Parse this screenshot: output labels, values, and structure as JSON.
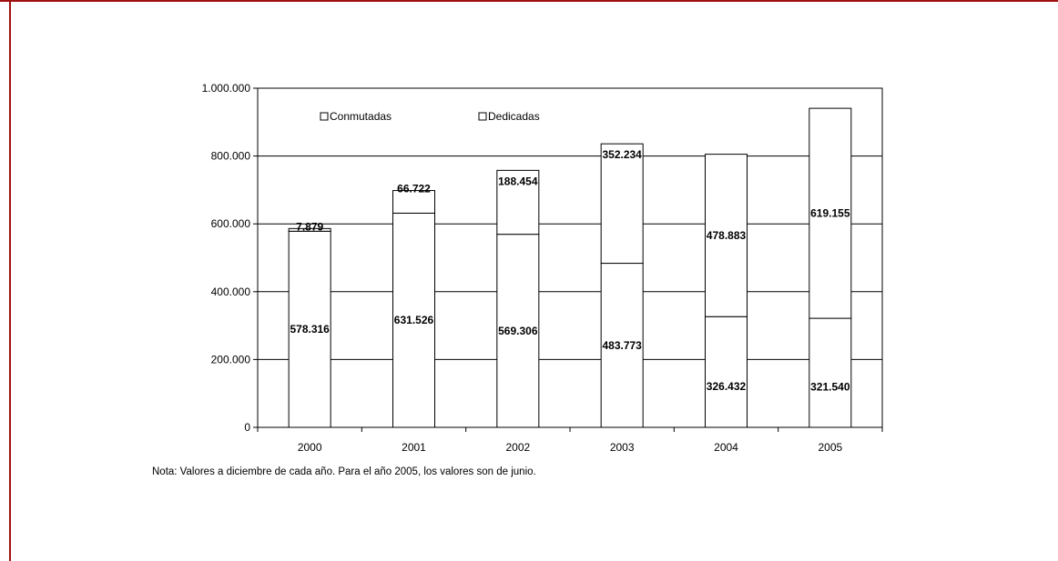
{
  "colors": {
    "frame": "#a01010",
    "axis": "#000000",
    "bar_fill": "#ffffff",
    "bar_stroke": "#000000"
  },
  "chart_data": {
    "type": "bar",
    "stacked": true,
    "categories": [
      "2000",
      "2001",
      "2002",
      "2003",
      "2004",
      "2005"
    ],
    "series": [
      {
        "name": "Conmutadas",
        "values": [
          578316,
          631526,
          569306,
          483773,
          326432,
          321540
        ],
        "labels": [
          "578.316",
          "631.526",
          "569.306",
          "483.773",
          "326.432",
          "321.540"
        ]
      },
      {
        "name": "Dedicadas",
        "values": [
          7879,
          66722,
          188454,
          352234,
          478883,
          619155
        ],
        "labels": [
          "7.879",
          "66.722",
          "188.454",
          "352.234",
          "478.883",
          "619.155"
        ]
      }
    ],
    "ylim": [
      0,
      1000000
    ],
    "yticks": [
      0,
      200000,
      400000,
      600000,
      800000,
      1000000
    ],
    "ytick_labels": [
      "0",
      "200.000",
      "400.000",
      "600.000",
      "800.000",
      "1.000.000"
    ],
    "grid": true,
    "legend": "top"
  },
  "note": "Nota: Valores a diciembre de cada año. Para el año 2005, los valores son de junio."
}
